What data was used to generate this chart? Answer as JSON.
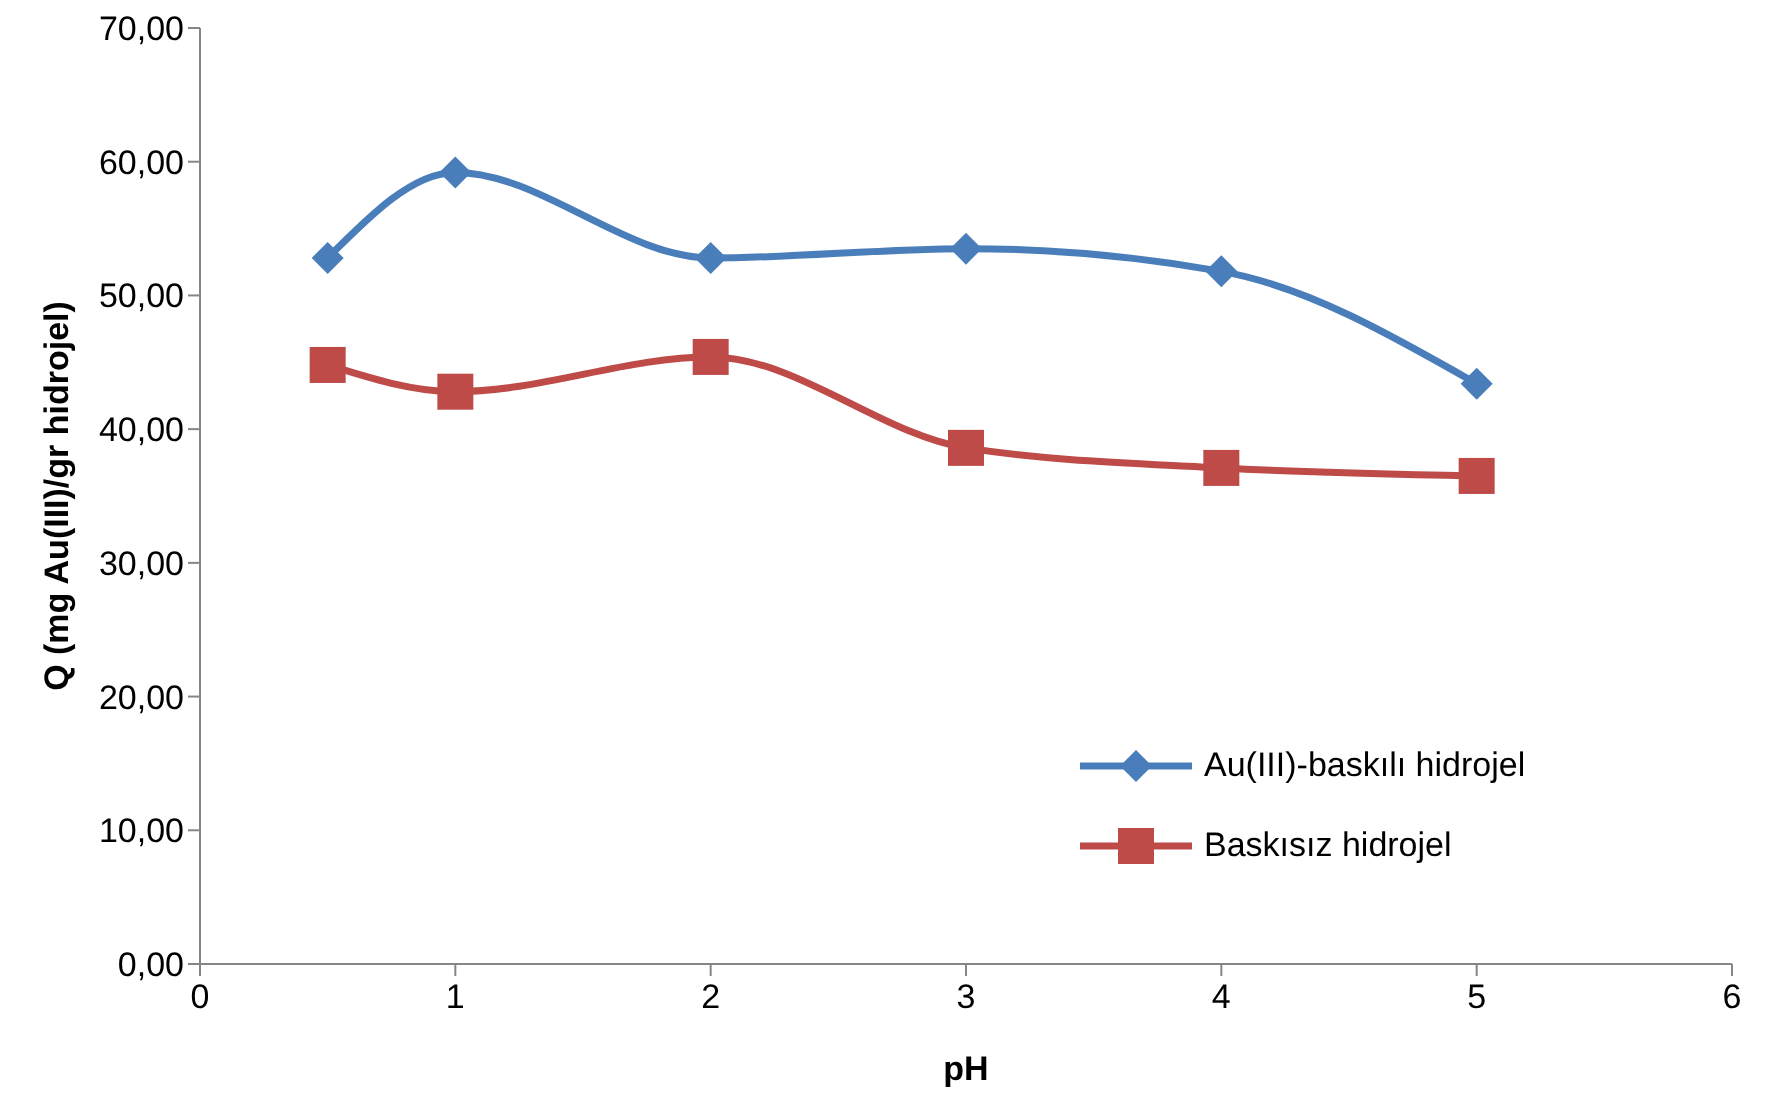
{
  "chart_data": {
    "type": "line",
    "xlabel": "pH",
    "ylabel": "Q (mg Au(III)/gr hidrojel)",
    "x": [
      0.5,
      1,
      2,
      3,
      4,
      5
    ],
    "series": [
      {
        "name": "Au(III)-baskılı hidrojel",
        "color": "#4a7ebb",
        "marker": "diamond",
        "values": [
          52.8,
          59.2,
          52.8,
          53.5,
          51.8,
          43.4
        ]
      },
      {
        "name": "Baskısız hidrojel",
        "color": "#be4b48",
        "marker": "square",
        "values": [
          44.8,
          42.8,
          45.4,
          38.6,
          37.1,
          36.5
        ]
      }
    ],
    "xlim": [
      0,
      6
    ],
    "xticks": [
      0,
      1,
      2,
      3,
      4,
      5,
      6
    ],
    "ylim": [
      0,
      70
    ],
    "yticks": [
      {
        "value": 0,
        "label": "0,00"
      },
      {
        "value": 10,
        "label": "10,00"
      },
      {
        "value": 20,
        "label": "20,00"
      },
      {
        "value": 30,
        "label": "30,00"
      },
      {
        "value": 40,
        "label": "40,00"
      },
      {
        "value": 50,
        "label": "50,00"
      },
      {
        "value": 60,
        "label": "60,00"
      },
      {
        "value": 70,
        "label": "70,00"
      }
    ],
    "grid": false,
    "legend": "bottom right",
    "line_style": "solid"
  }
}
